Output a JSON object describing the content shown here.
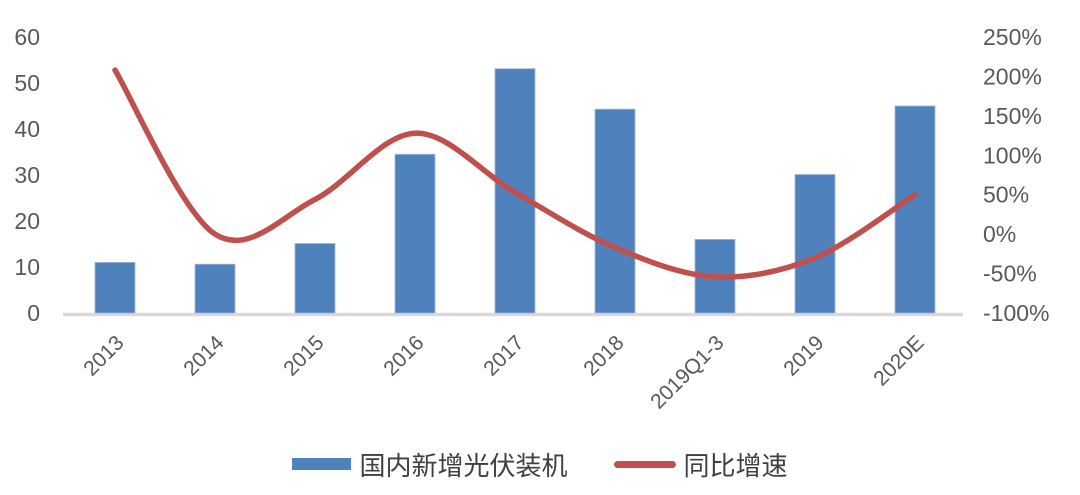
{
  "chart_data": {
    "type": "combo-bar-line",
    "categories": [
      "2013",
      "2014",
      "2015",
      "2016",
      "2017",
      "2018",
      "2019Q1-3",
      "2019",
      "2020E"
    ],
    "series": [
      {
        "name": "国内新增光伏装机",
        "type": "bar",
        "axis": "left",
        "color": "#4F81BD",
        "values": [
          11,
          10.6,
          15.1,
          34.5,
          53.1,
          44.3,
          16,
          30.1,
          45
        ]
      },
      {
        "name": "同比增速",
        "type": "line",
        "axis": "right",
        "unit": "%",
        "color": "#C0504D",
        "smooth": true,
        "values": [
          208,
          0,
          44,
          128,
          53,
          -17,
          -54,
          -30,
          50
        ]
      }
    ],
    "left_axis": {
      "min": 0,
      "max": 60,
      "ticks": [
        0,
        10,
        20,
        30,
        40,
        50,
        60
      ]
    },
    "right_axis": {
      "min": -100,
      "max": 250,
      "ticks": [
        -100,
        -50,
        0,
        50,
        100,
        150,
        200,
        250
      ],
      "suffix": "%"
    },
    "grid": false,
    "title": "",
    "legend_position": "bottom"
  },
  "legend": {
    "bar_label": "国内新增光伏装机",
    "line_label": "同比增速"
  },
  "colors": {
    "bar": "#4F81BD",
    "line": "#C0504D",
    "axis_text": "#595959",
    "baseline": "#D9D9D9",
    "legend_text": "#404040",
    "background": "#FFFFFF"
  }
}
